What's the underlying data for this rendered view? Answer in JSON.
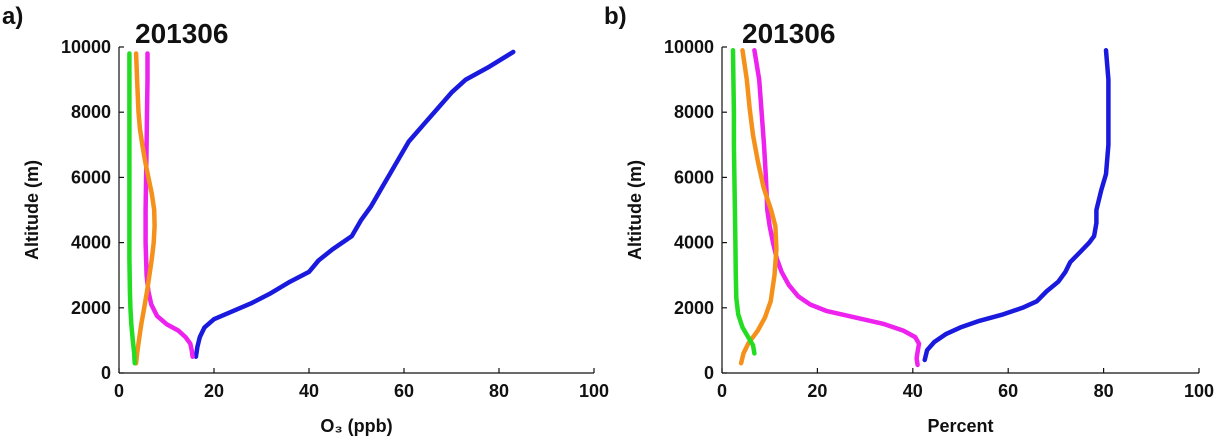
{
  "chart_data": [
    {
      "type": "line",
      "panel_label": "a)",
      "title": "201306",
      "xlabel": "O₃ (ppb)",
      "ylabel": "Altitude (m)",
      "xlim": [
        0,
        100
      ],
      "ylim": [
        0,
        10000
      ],
      "xticks": [
        "0",
        "20",
        "40",
        "60",
        "80",
        "100"
      ],
      "yticks": [
        "0",
        "2000",
        "4000",
        "6000",
        "8000",
        "10000"
      ],
      "grid": false,
      "series": [
        {
          "color": "#1a1adf",
          "points": [
            [
              16.2,
              500
            ],
            [
              16.5,
              800
            ],
            [
              17,
              1100
            ],
            [
              18,
              1400
            ],
            [
              20,
              1650
            ],
            [
              24,
              1900
            ],
            [
              28,
              2150
            ],
            [
              32,
              2450
            ],
            [
              36,
              2800
            ],
            [
              40,
              3100
            ],
            [
              42,
              3450
            ],
            [
              45,
              3800
            ],
            [
              49,
              4200
            ],
            [
              51,
              4700
            ],
            [
              53,
              5100
            ],
            [
              55,
              5600
            ],
            [
              57,
              6100
            ],
            [
              59,
              6600
            ],
            [
              61,
              7100
            ],
            [
              64,
              7600
            ],
            [
              67,
              8100
            ],
            [
              70,
              8600
            ],
            [
              73,
              9000
            ],
            [
              78,
              9400
            ],
            [
              83,
              9850
            ]
          ]
        },
        {
          "color": "#ee22ee",
          "points": [
            [
              15.5,
              500
            ],
            [
              15.3,
              700
            ],
            [
              15,
              900
            ],
            [
              14,
              1100
            ],
            [
              12.5,
              1300
            ],
            [
              10,
              1500
            ],
            [
              8,
              1750
            ],
            [
              6.8,
              2100
            ],
            [
              6.2,
              2500
            ],
            [
              5.8,
              3000
            ],
            [
              5.6,
              4000
            ],
            [
              5.6,
              5000
            ],
            [
              5.7,
              6000
            ],
            [
              5.8,
              7000
            ],
            [
              5.9,
              8000
            ],
            [
              6,
              9000
            ],
            [
              6,
              9800
            ]
          ]
        },
        {
          "color": "#f5901a",
          "points": [
            [
              3.6,
              300
            ],
            [
              3.8,
              600
            ],
            [
              4.2,
              1000
            ],
            [
              4.7,
              1500
            ],
            [
              5.3,
              2000
            ],
            [
              5.9,
              2500
            ],
            [
              6.4,
              3000
            ],
            [
              6.9,
              3500
            ],
            [
              7.3,
              4000
            ],
            [
              7.5,
              4500
            ],
            [
              7.4,
              5000
            ],
            [
              6.9,
              5500
            ],
            [
              6.2,
              6000
            ],
            [
              5.5,
              6500
            ],
            [
              4.9,
              7000
            ],
            [
              4.4,
              7500
            ],
            [
              4.1,
              8000
            ],
            [
              3.8,
              9000
            ],
            [
              3.6,
              9800
            ]
          ]
        },
        {
          "color": "#22dd22",
          "points": [
            [
              3.3,
              300
            ],
            [
              3.2,
              600
            ],
            [
              2.9,
              1000
            ],
            [
              2.6,
              1500
            ],
            [
              2.4,
              2000
            ],
            [
              2.3,
              2500
            ],
            [
              2.2,
              3500
            ],
            [
              2.2,
              4500
            ],
            [
              2.2,
              5500
            ],
            [
              2.2,
              6500
            ],
            [
              2.2,
              7500
            ],
            [
              2.2,
              8500
            ],
            [
              2.2,
              9300
            ],
            [
              2.2,
              9800
            ]
          ]
        }
      ]
    },
    {
      "type": "line",
      "panel_label": "b)",
      "title": "201306",
      "xlabel": "Percent",
      "ylabel": "Altitude (m)",
      "xlim": [
        0,
        100
      ],
      "ylim": [
        0,
        10000
      ],
      "xticks": [
        "0",
        "20",
        "40",
        "60",
        "80",
        "100"
      ],
      "yticks": [
        "0",
        "2000",
        "4000",
        "6000",
        "8000",
        "10000"
      ],
      "grid": false,
      "series": [
        {
          "color": "#1a1adf",
          "points": [
            [
              42.5,
              400
            ],
            [
              43,
              700
            ],
            [
              44.5,
              950
            ],
            [
              47,
              1200
            ],
            [
              50,
              1400
            ],
            [
              54,
              1600
            ],
            [
              59,
              1800
            ],
            [
              63,
              2000
            ],
            [
              66,
              2200
            ],
            [
              68,
              2500
            ],
            [
              70.5,
              2800
            ],
            [
              72,
              3100
            ],
            [
              73,
              3400
            ],
            [
              75,
              3700
            ],
            [
              77,
              4000
            ],
            [
              78,
              4200
            ],
            [
              78.5,
              4600
            ],
            [
              78.5,
              5000
            ],
            [
              79.5,
              5600
            ],
            [
              80.5,
              6100
            ],
            [
              81,
              7000
            ],
            [
              81,
              8000
            ],
            [
              81,
              9000
            ],
            [
              80.5,
              9900
            ]
          ]
        },
        {
          "color": "#ee22ee",
          "points": [
            [
              41,
              250
            ],
            [
              40.8,
              450
            ],
            [
              41,
              650
            ],
            [
              41.3,
              900
            ],
            [
              40.5,
              1100
            ],
            [
              38,
              1300
            ],
            [
              34,
              1500
            ],
            [
              28,
              1700
            ],
            [
              22,
              1900
            ],
            [
              18.5,
              2100
            ],
            [
              16,
              2350
            ],
            [
              14,
              2700
            ],
            [
              12.5,
              3100
            ],
            [
              11.5,
              3500
            ],
            [
              10.7,
              4000
            ],
            [
              10,
              4500
            ],
            [
              9.5,
              5000
            ],
            [
              9.2,
              6000
            ],
            [
              8.8,
              7000
            ],
            [
              8.3,
              8000
            ],
            [
              7.8,
              9000
            ],
            [
              6.8,
              9900
            ]
          ]
        },
        {
          "color": "#f5901a",
          "points": [
            [
              4,
              300
            ],
            [
              4.5,
              600
            ],
            [
              5.5,
              900
            ],
            [
              7.5,
              1300
            ],
            [
              9,
              1700
            ],
            [
              10.2,
              2200
            ],
            [
              11,
              3000
            ],
            [
              11.4,
              3800
            ],
            [
              11.2,
              4500
            ],
            [
              10.3,
              5000
            ],
            [
              8.7,
              5700
            ],
            [
              7.5,
              6500
            ],
            [
              6.5,
              7300
            ],
            [
              5.8,
              8100
            ],
            [
              5.2,
              9000
            ],
            [
              4.3,
              9900
            ]
          ]
        },
        {
          "color": "#22dd22",
          "points": [
            [
              6.8,
              600
            ],
            [
              6.5,
              850
            ],
            [
              5.5,
              1100
            ],
            [
              4.3,
              1400
            ],
            [
              3.4,
              1800
            ],
            [
              3,
              2300
            ],
            [
              2.9,
              3000
            ],
            [
              2.8,
              4000
            ],
            [
              2.7,
              5000
            ],
            [
              2.6,
              6000
            ],
            [
              2.5,
              7000
            ],
            [
              2.5,
              8000
            ],
            [
              2.4,
              9000
            ],
            [
              2.3,
              9900
            ]
          ]
        }
      ]
    }
  ]
}
